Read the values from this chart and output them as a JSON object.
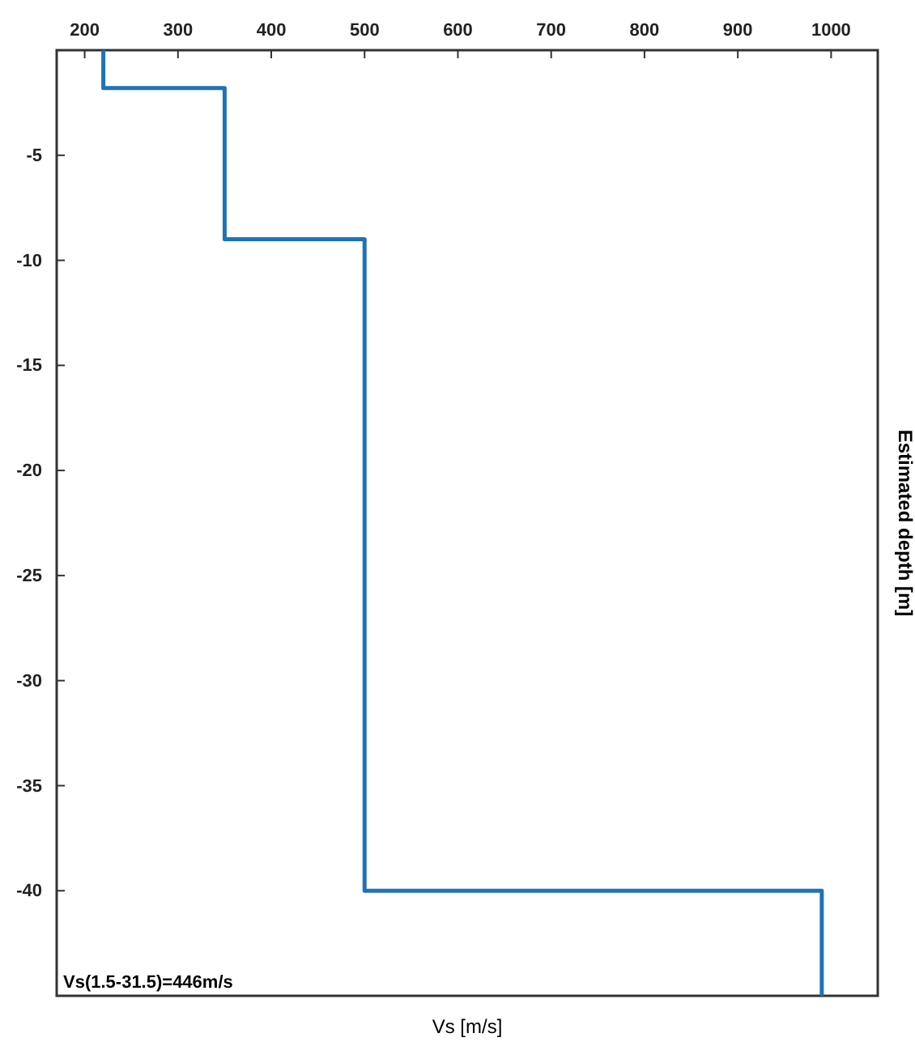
{
  "chart_data": {
    "type": "line",
    "xlabel": "Vs [m/s]",
    "ylabel": "Estimated depth [m]",
    "x": [
      220,
      220,
      350,
      350,
      500,
      500,
      990,
      990
    ],
    "series": [
      {
        "color": "#1f72b8",
        "values": [
          0,
          -1.8,
          -1.8,
          -9,
          -9,
          -40,
          -40,
          -45
        ]
      }
    ],
    "xlim": [
      170,
      1050
    ],
    "xticks": [
      200,
      300,
      400,
      500,
      600,
      700,
      800,
      900,
      1000
    ],
    "ylim": [
      -45,
      0
    ],
    "yticks": [
      -5,
      -10,
      -15,
      -20,
      -25,
      -30,
      -35,
      -40
    ],
    "annotations": [
      "Vs(1.5-31.5)=446m/s"
    ],
    "grid": false,
    "marker": "none",
    "line_style": "solid"
  }
}
